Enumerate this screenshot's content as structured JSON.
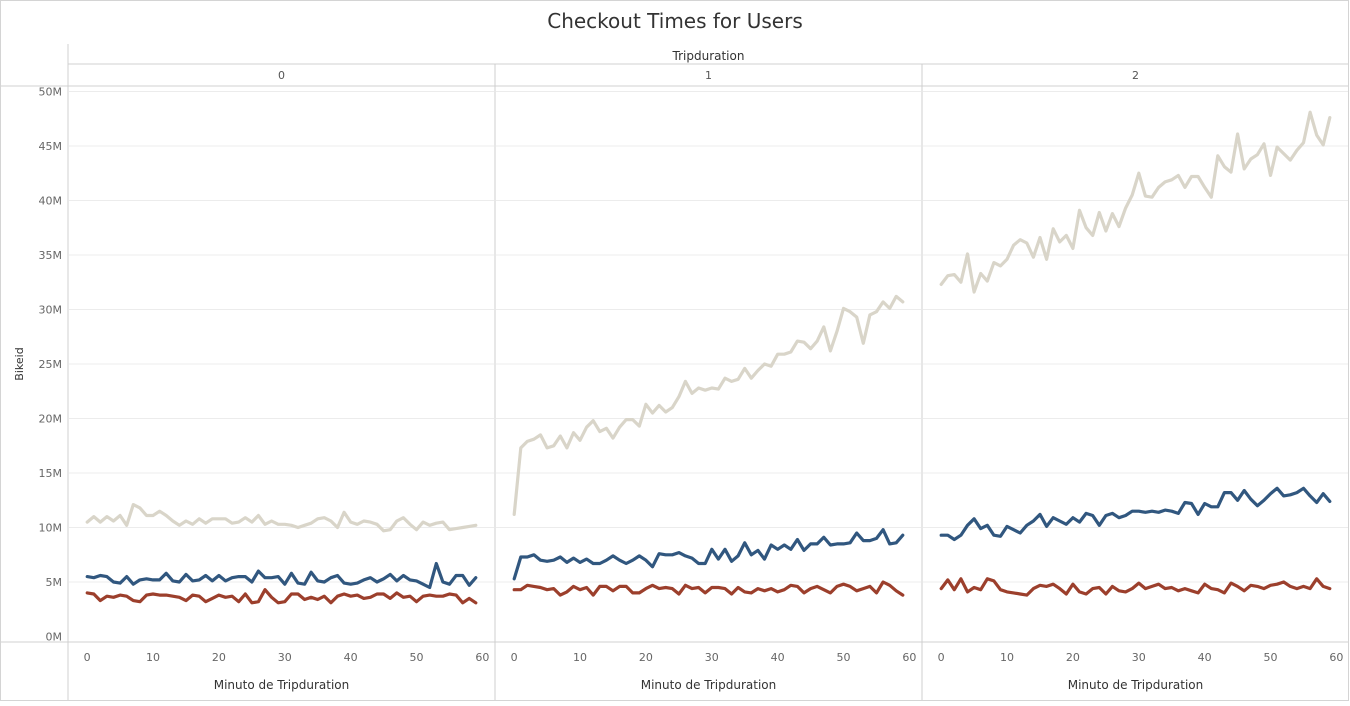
{
  "chart_data": {
    "type": "line",
    "title": "Checkout Times for Users",
    "column_header": "Tripduration",
    "panels": [
      "0",
      "1",
      "2"
    ],
    "xlabel": "Minuto de Tripduration",
    "ylabel": "Bikeid",
    "xlim": [
      -2,
      61
    ],
    "ylim": [
      -0.5,
      50.5
    ],
    "x_ticks": [
      0,
      10,
      20,
      30,
      40,
      50,
      60
    ],
    "y_ticks": [
      0,
      5,
      10,
      15,
      20,
      25,
      30,
      35,
      40,
      45,
      50
    ],
    "y_tick_labels": [
      "0M",
      "5M",
      "10M",
      "15M",
      "20M",
      "25M",
      "30M",
      "35M",
      "40M",
      "45M",
      "50M"
    ],
    "y_unit": "M",
    "x": [
      0,
      1,
      2,
      3,
      4,
      5,
      6,
      7,
      8,
      9,
      10,
      11,
      12,
      13,
      14,
      15,
      16,
      17,
      18,
      19,
      20,
      21,
      22,
      23,
      24,
      25,
      26,
      27,
      28,
      29,
      30,
      31,
      32,
      33,
      34,
      35,
      36,
      37,
      38,
      39,
      40,
      41,
      42,
      43,
      44,
      45,
      46,
      47,
      48,
      49,
      50,
      51,
      52,
      53,
      54,
      55,
      56,
      57,
      58,
      59
    ],
    "grid": true,
    "series": [
      {
        "key": "gray",
        "color": "#d9d5c9",
        "panels": [
          [
            10.5,
            11.0,
            10.5,
            11.0,
            10.6,
            11.1,
            10.2,
            12.1,
            11.8,
            11.1,
            11.1,
            11.5,
            11.1,
            10.6,
            10.2,
            10.6,
            10.3,
            10.8,
            10.4,
            10.8,
            10.8,
            10.8,
            10.4,
            10.5,
            10.9,
            10.5,
            11.1,
            10.3,
            10.6,
            10.3,
            10.3,
            10.2,
            10.0,
            10.2,
            10.4,
            10.8,
            10.9,
            10.6,
            10.0,
            11.4,
            10.5,
            10.3,
            10.6,
            10.5,
            10.3,
            9.7,
            9.8,
            10.6,
            10.9,
            10.3,
            9.8,
            10.5,
            10.2,
            10.4,
            10.5,
            9.8,
            9.9,
            10.0,
            10.1,
            10.2
          ],
          [
            11.2,
            17.3,
            17.9,
            18.1,
            18.5,
            17.3,
            17.5,
            18.4,
            17.3,
            18.7,
            18.0,
            19.2,
            19.8,
            18.8,
            19.1,
            18.2,
            19.2,
            19.9,
            19.9,
            19.3,
            21.3,
            20.5,
            21.2,
            20.6,
            21.0,
            22.0,
            23.4,
            22.3,
            22.8,
            22.6,
            22.8,
            22.7,
            23.7,
            23.4,
            23.6,
            24.6,
            23.7,
            24.4,
            25.0,
            24.8,
            25.9,
            25.9,
            26.1,
            27.1,
            27.0,
            26.4,
            27.1,
            28.4,
            26.2,
            28.0,
            30.1,
            29.8,
            29.3,
            26.9,
            29.5,
            29.8,
            30.7,
            30.1,
            31.2,
            30.7
          ],
          [
            32.3,
            33.1,
            33.2,
            32.5,
            35.1,
            31.6,
            33.3,
            32.6,
            34.3,
            34.0,
            34.6,
            35.9,
            36.4,
            36.1,
            34.8,
            36.6,
            34.6,
            37.4,
            36.2,
            36.8,
            35.6,
            39.1,
            37.5,
            36.8,
            38.9,
            37.2,
            38.8,
            37.6,
            39.3,
            40.5,
            42.5,
            40.4,
            40.3,
            41.2,
            41.7,
            41.9,
            42.3,
            41.2,
            42.2,
            42.2,
            41.2,
            40.3,
            44.1,
            43.1,
            42.6,
            46.1,
            42.9,
            43.8,
            44.2,
            45.2,
            42.3,
            44.9,
            44.3,
            43.7,
            44.6,
            45.3,
            48.1,
            46.0,
            45.1,
            47.6
          ]
        ]
      },
      {
        "key": "blue",
        "color": "#31577f",
        "panels": [
          [
            5.5,
            5.4,
            5.6,
            5.5,
            5.0,
            4.9,
            5.5,
            4.8,
            5.2,
            5.3,
            5.2,
            5.2,
            5.8,
            5.1,
            5.0,
            5.7,
            5.1,
            5.2,
            5.6,
            5.1,
            5.6,
            5.1,
            5.4,
            5.5,
            5.5,
            5.0,
            6.0,
            5.4,
            5.4,
            5.5,
            4.8,
            5.8,
            4.9,
            4.8,
            5.9,
            5.1,
            5.0,
            5.4,
            5.6,
            4.9,
            4.8,
            4.9,
            5.2,
            5.4,
            5.0,
            5.3,
            5.7,
            5.1,
            5.6,
            5.2,
            5.1,
            4.8,
            4.5,
            6.7,
            5.0,
            4.8,
            5.6,
            5.6,
            4.7,
            5.4
          ],
          [
            5.3,
            7.3,
            7.3,
            7.5,
            7.0,
            6.9,
            7.0,
            7.3,
            6.8,
            7.2,
            6.8,
            7.1,
            6.7,
            6.7,
            7.0,
            7.4,
            7.0,
            6.7,
            7.0,
            7.4,
            7.0,
            6.4,
            7.6,
            7.5,
            7.5,
            7.7,
            7.4,
            7.2,
            6.7,
            6.7,
            8.0,
            7.1,
            8.0,
            6.9,
            7.4,
            8.6,
            7.5,
            7.9,
            7.1,
            8.4,
            8.0,
            8.4,
            8.0,
            8.9,
            7.9,
            8.5,
            8.5,
            9.1,
            8.4,
            8.5,
            8.5,
            8.6,
            9.5,
            8.8,
            8.8,
            9.0,
            9.8,
            8.5,
            8.6,
            9.3
          ],
          [
            9.3,
            9.3,
            8.9,
            9.3,
            10.2,
            10.8,
            9.9,
            10.2,
            9.3,
            9.2,
            10.1,
            9.8,
            9.5,
            10.2,
            10.6,
            11.2,
            10.1,
            10.9,
            10.6,
            10.3,
            10.9,
            10.5,
            11.3,
            11.1,
            10.2,
            11.1,
            11.3,
            10.9,
            11.1,
            11.5,
            11.5,
            11.4,
            11.5,
            11.4,
            11.6,
            11.5,
            11.3,
            12.3,
            12.2,
            11.2,
            12.2,
            11.9,
            11.9,
            13.2,
            13.2,
            12.5,
            13.4,
            12.6,
            12.0,
            12.5,
            13.1,
            13.6,
            12.9,
            13.0,
            13.2,
            13.6,
            12.9,
            12.3,
            13.1,
            12.4
          ]
        ]
      },
      {
        "key": "red",
        "color": "#9c3f2c",
        "panels": [
          [
            4.0,
            3.9,
            3.3,
            3.7,
            3.6,
            3.8,
            3.7,
            3.3,
            3.2,
            3.8,
            3.9,
            3.8,
            3.8,
            3.7,
            3.6,
            3.3,
            3.8,
            3.7,
            3.2,
            3.5,
            3.8,
            3.6,
            3.7,
            3.2,
            3.9,
            3.1,
            3.2,
            4.3,
            3.6,
            3.1,
            3.2,
            3.9,
            3.9,
            3.4,
            3.6,
            3.4,
            3.7,
            3.1,
            3.7,
            3.9,
            3.7,
            3.8,
            3.5,
            3.6,
            3.9,
            3.9,
            3.5,
            4.0,
            3.6,
            3.7,
            3.2,
            3.7,
            3.8,
            3.7,
            3.7,
            3.9,
            3.8,
            3.1,
            3.5,
            3.1
          ],
          [
            4.3,
            4.3,
            4.7,
            4.6,
            4.5,
            4.3,
            4.4,
            3.8,
            4.1,
            4.6,
            4.3,
            4.5,
            3.8,
            4.6,
            4.6,
            4.2,
            4.6,
            4.6,
            4.0,
            4.0,
            4.4,
            4.7,
            4.4,
            4.5,
            4.4,
            3.9,
            4.7,
            4.4,
            4.5,
            4.0,
            4.5,
            4.5,
            4.4,
            3.9,
            4.5,
            4.1,
            4.0,
            4.4,
            4.2,
            4.4,
            4.1,
            4.3,
            4.7,
            4.6,
            4.0,
            4.4,
            4.6,
            4.3,
            4.0,
            4.6,
            4.8,
            4.6,
            4.2,
            4.4,
            4.6,
            4.0,
            5.0,
            4.7,
            4.2,
            3.8
          ],
          [
            4.4,
            5.2,
            4.3,
            5.3,
            4.1,
            4.5,
            4.3,
            5.3,
            5.1,
            4.3,
            4.1,
            4.0,
            3.9,
            3.8,
            4.4,
            4.7,
            4.6,
            4.8,
            4.4,
            3.9,
            4.8,
            4.1,
            3.9,
            4.4,
            4.5,
            3.9,
            4.6,
            4.2,
            4.1,
            4.4,
            4.9,
            4.4,
            4.6,
            4.8,
            4.4,
            4.5,
            4.2,
            4.4,
            4.2,
            4.0,
            4.8,
            4.4,
            4.3,
            4.0,
            4.9,
            4.6,
            4.2,
            4.7,
            4.6,
            4.4,
            4.7,
            4.8,
            5.0,
            4.6,
            4.4,
            4.6,
            4.4,
            5.3,
            4.6,
            4.4
          ]
        ]
      }
    ]
  }
}
